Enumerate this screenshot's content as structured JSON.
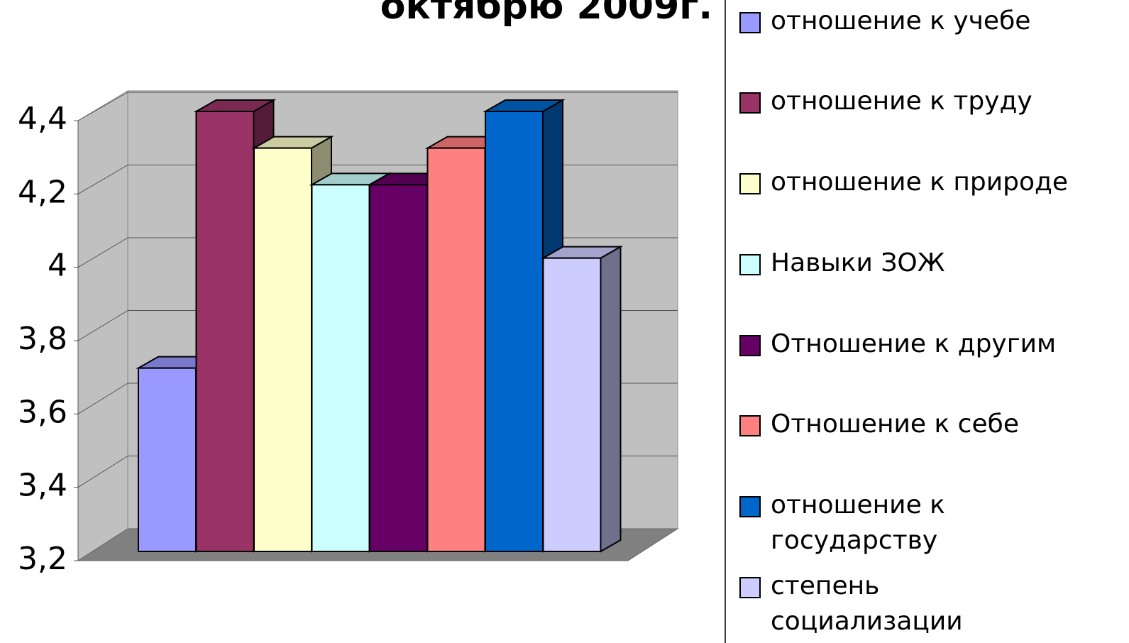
{
  "chart_data": {
    "type": "bar3d",
    "title": "октябрю 2009г.",
    "series": [
      {
        "name": "отношение к учебе",
        "color": "#9999ff",
        "values": [
          3.7
        ]
      },
      {
        "name": "отношение к труду",
        "color": "#993366",
        "values": [
          4.4
        ]
      },
      {
        "name": "отношение к природе",
        "color": "#ffffcc",
        "values": [
          4.3
        ]
      },
      {
        "name": "Навыки ЗОЖ",
        "color": "#ccffff",
        "values": [
          4.2
        ]
      },
      {
        "name": "Отношение к другим",
        "color": "#660066",
        "values": [
          4.2
        ]
      },
      {
        "name": "Отношение к себе",
        "color": "#ff8080",
        "values": [
          4.3
        ]
      },
      {
        "name": "отношение к государству",
        "color": "#0066cc",
        "values": [
          4.4
        ]
      },
      {
        "name": "степень социализации",
        "color": "#ccccff",
        "values": [
          4.0
        ]
      }
    ],
    "ylim": [
      3.2,
      4.4
    ],
    "yticks": [
      {
        "value": 3.2,
        "label": "3,2"
      },
      {
        "value": 3.4,
        "label": "3,4"
      },
      {
        "value": 3.6,
        "label": "3,6"
      },
      {
        "value": 3.8,
        "label": "3,8"
      },
      4,
      {
        "value": 4.2,
        "label": "4,2"
      },
      {
        "value": 4.4,
        "label": "4,4"
      }
    ],
    "grid": true
  }
}
